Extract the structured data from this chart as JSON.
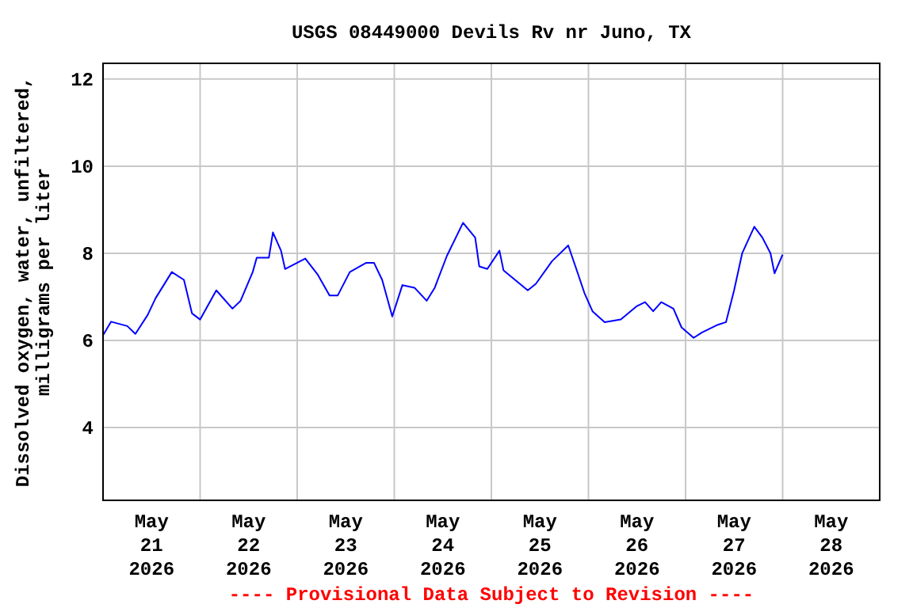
{
  "chart_data": {
    "type": "line",
    "title": "USGS 08449000 Devils Rv nr Juno, TX",
    "ylabel": "Dissolved oxygen, water, unfiltered,\nmilligrams per liter",
    "annotations": [
      "---- Provisional Data Subject to Revision ----"
    ],
    "x": [
      "2026-05-21T00:00",
      "2026-05-21T02:00",
      "2026-05-21T06:00",
      "2026-05-21T08:00",
      "2026-05-21T11:00",
      "2026-05-21T13:00",
      "2026-05-21T17:00",
      "2026-05-21T20:00",
      "2026-05-21T22:00",
      "2026-05-22T00:00",
      "2026-05-22T04:00",
      "2026-05-22T08:00",
      "2026-05-22T10:00",
      "2026-05-22T13:00",
      "2026-05-22T14:00",
      "2026-05-22T17:00",
      "2026-05-22T18:00",
      "2026-05-22T20:00",
      "2026-05-22T21:00",
      "2026-05-23T02:00",
      "2026-05-23T05:00",
      "2026-05-23T08:00",
      "2026-05-23T10:00",
      "2026-05-23T13:00",
      "2026-05-23T17:00",
      "2026-05-23T19:00",
      "2026-05-23T21:00",
      "2026-05-23T23:30",
      "2026-05-24T02:00",
      "2026-05-24T05:00",
      "2026-05-24T08:00",
      "2026-05-24T10:00",
      "2026-05-24T13:00",
      "2026-05-24T17:00",
      "2026-05-24T20:00",
      "2026-05-24T21:00",
      "2026-05-24T23:00",
      "2026-05-25T02:00",
      "2026-05-25T03:00",
      "2026-05-25T09:00",
      "2026-05-25T11:00",
      "2026-05-25T15:00",
      "2026-05-25T19:00",
      "2026-05-25T21:00",
      "2026-05-25T23:00",
      "2026-05-26T01:00",
      "2026-05-26T04:00",
      "2026-05-26T08:00",
      "2026-05-26T12:00",
      "2026-05-26T14:00",
      "2026-05-26T16:00",
      "2026-05-26T18:00",
      "2026-05-26T21:00",
      "2026-05-26T23:00",
      "2026-05-27T02:00",
      "2026-05-27T04:00",
      "2026-05-27T08:00",
      "2026-05-27T10:00",
      "2026-05-27T12:00",
      "2026-05-27T14:00",
      "2026-05-27T17:00",
      "2026-05-27T19:00",
      "2026-05-27T21:00",
      "2026-05-27T22:00",
      "2026-05-28T00:00"
    ],
    "values": [
      6.12,
      6.43,
      6.33,
      6.15,
      6.58,
      6.97,
      7.57,
      7.39,
      6.62,
      6.48,
      7.15,
      6.73,
      6.91,
      7.57,
      7.9,
      7.9,
      8.48,
      8.06,
      7.64,
      7.88,
      7.52,
      7.03,
      7.03,
      7.57,
      7.78,
      7.78,
      7.39,
      6.55,
      7.27,
      7.21,
      6.91,
      7.21,
      7.94,
      8.7,
      8.36,
      7.7,
      7.64,
      8.06,
      7.61,
      7.15,
      7.3,
      7.82,
      8.18,
      7.64,
      7.09,
      6.67,
      6.42,
      6.48,
      6.79,
      6.88,
      6.67,
      6.88,
      6.73,
      6.3,
      6.06,
      6.18,
      6.36,
      6.42,
      7.15,
      8.0,
      8.61,
      8.36,
      8.0,
      7.54,
      7.97
    ],
    "color": "#0000ff",
    "line_style": "solid",
    "marker": "none",
    "xlim": [
      "2026-05-21T00:00",
      "2026-05-29T00:00"
    ],
    "xticks": [
      {
        "value": "2026-05-21T12:00",
        "label": "May\n21\n2026"
      },
      {
        "value": "2026-05-22T00:00",
        "label": null
      },
      {
        "value": "2026-05-22T12:00",
        "label": "May\n22\n2026"
      },
      {
        "value": "2026-05-23T00:00",
        "label": null
      },
      {
        "value": "2026-05-23T12:00",
        "label": "May\n23\n2026"
      },
      {
        "value": "2026-05-24T00:00",
        "label": null
      },
      {
        "value": "2026-05-24T12:00",
        "label": "May\n24\n2026"
      },
      {
        "value": "2026-05-25T00:00",
        "label": null
      },
      {
        "value": "2026-05-25T12:00",
        "label": "May\n25\n2026"
      },
      {
        "value": "2026-05-26T00:00",
        "label": null
      },
      {
        "value": "2026-05-26T12:00",
        "label": "May\n26\n2026"
      },
      {
        "value": "2026-05-27T00:00",
        "label": null
      },
      {
        "value": "2026-05-27T12:00",
        "label": "May\n27\n2026"
      },
      {
        "value": "2026-05-28T00:00",
        "label": null
      },
      {
        "value": "2026-05-28T12:00",
        "label": "May\n28\n2026"
      }
    ],
    "ylim": [
      2.33,
      12.36
    ],
    "yticks": [
      4,
      6,
      8,
      10,
      12
    ],
    "grid": true
  }
}
